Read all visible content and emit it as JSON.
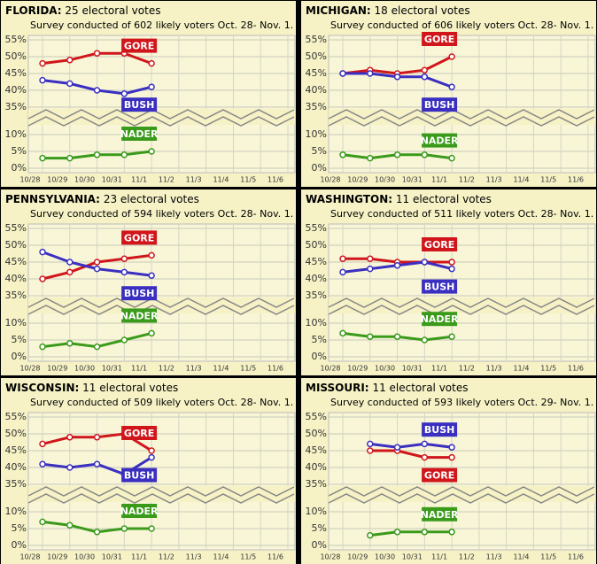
{
  "chart_data": [
    {
      "type": "line",
      "state": "FLORIDA:",
      "title": "25 electoral votes",
      "subtitle": "Survey conducted of 602 likely voters Oct. 28- Nov. 1.",
      "categories": [
        "10/28",
        "10/29",
        "10/30",
        "10/31",
        "11/1",
        "11/2",
        "11/3",
        "11/4",
        "11/5",
        "11/6"
      ],
      "ylim": [
        0,
        55
      ],
      "ybreak": [
        10,
        35
      ],
      "grid": true,
      "yticks": [
        {
          "value": 0,
          "label": "0%"
        },
        {
          "value": 5,
          "label": "5%"
        },
        {
          "value": 10,
          "label": "10%"
        },
        {
          "value": 35,
          "label": "35%"
        },
        {
          "value": 40,
          "label": "40%"
        },
        {
          "value": 45,
          "label": "45%"
        },
        {
          "value": 50,
          "label": "50%"
        },
        {
          "value": 55,
          "label": "55%"
        }
      ],
      "series": [
        {
          "name": "GORE",
          "color": "#d0161b",
          "values": [
            48,
            49,
            51,
            51,
            48,
            null,
            null,
            null,
            null,
            null
          ]
        },
        {
          "name": "BUSH",
          "color": "#3a2fc0",
          "values": [
            43,
            42,
            40,
            39,
            41,
            null,
            null,
            null,
            null,
            null
          ]
        },
        {
          "name": "NADER",
          "color": "#3a9a1a",
          "values": [
            3,
            3,
            4,
            4,
            5,
            null,
            null,
            null,
            null,
            null
          ]
        }
      ]
    },
    {
      "type": "line",
      "state": "MICHIGAN:",
      "title": "18 electoral votes",
      "subtitle": "Survey conducted of 606 likely voters Oct. 28- Nov. 1.",
      "categories": [
        "10/28",
        "10/29",
        "10/30",
        "10/31",
        "11/1",
        "11/2",
        "11/3",
        "11/4",
        "11/5",
        "11/6"
      ],
      "ylim": [
        0,
        55
      ],
      "ybreak": [
        10,
        35
      ],
      "grid": true,
      "yticks": [
        {
          "value": 0,
          "label": "0%"
        },
        {
          "value": 5,
          "label": "5%"
        },
        {
          "value": 10,
          "label": "10%"
        },
        {
          "value": 35,
          "label": "35%"
        },
        {
          "value": 40,
          "label": "40%"
        },
        {
          "value": 45,
          "label": "45%"
        },
        {
          "value": 50,
          "label": "50%"
        },
        {
          "value": 55,
          "label": "55%"
        }
      ],
      "series": [
        {
          "name": "GORE",
          "color": "#d0161b",
          "values": [
            45,
            46,
            45,
            46,
            50,
            null,
            null,
            null,
            null,
            null
          ]
        },
        {
          "name": "BUSH",
          "color": "#3a2fc0",
          "values": [
            45,
            45,
            44,
            44,
            41,
            null,
            null,
            null,
            null,
            null
          ]
        },
        {
          "name": "NADER",
          "color": "#3a9a1a",
          "values": [
            4,
            3,
            4,
            4,
            3,
            null,
            null,
            null,
            null,
            null
          ]
        }
      ]
    },
    {
      "type": "line",
      "state": "PENNSYLVANIA:",
      "title": "23 electoral votes",
      "subtitle": "Survey conducted of 594 likely voters Oct. 28- Nov. 1.",
      "categories": [
        "10/28",
        "10/29",
        "10/30",
        "10/31",
        "11/1",
        "11/2",
        "11/3",
        "11/4",
        "11/5",
        "11/6"
      ],
      "ylim": [
        0,
        55
      ],
      "ybreak": [
        10,
        35
      ],
      "grid": true,
      "yticks": [
        {
          "value": 0,
          "label": "0%"
        },
        {
          "value": 5,
          "label": "5%"
        },
        {
          "value": 10,
          "label": "10%"
        },
        {
          "value": 35,
          "label": "35%"
        },
        {
          "value": 40,
          "label": "40%"
        },
        {
          "value": 45,
          "label": "45%"
        },
        {
          "value": 50,
          "label": "50%"
        },
        {
          "value": 55,
          "label": "55%"
        }
      ],
      "series": [
        {
          "name": "GORE",
          "color": "#d0161b",
          "values": [
            40,
            42,
            45,
            46,
            47,
            null,
            null,
            null,
            null,
            null
          ]
        },
        {
          "name": "BUSH",
          "color": "#3a2fc0",
          "values": [
            48,
            45,
            43,
            42,
            41,
            null,
            null,
            null,
            null,
            null
          ]
        },
        {
          "name": "NADER",
          "color": "#3a9a1a",
          "values": [
            3,
            4,
            3,
            5,
            7,
            null,
            null,
            null,
            null,
            null
          ]
        }
      ]
    },
    {
      "type": "line",
      "state": "WASHINGTON:",
      "title": "11 electoral votes",
      "subtitle": "Survey conducted of 511 likely voters Oct. 28- Nov. 1.",
      "categories": [
        "10/28",
        "10/29",
        "10/30",
        "10/31",
        "11/1",
        "11/2",
        "11/3",
        "11/4",
        "11/5",
        "11/6"
      ],
      "ylim": [
        0,
        55
      ],
      "ybreak": [
        10,
        35
      ],
      "grid": true,
      "yticks": [
        {
          "value": 0,
          "label": "0%"
        },
        {
          "value": 5,
          "label": "5%"
        },
        {
          "value": 10,
          "label": "10%"
        },
        {
          "value": 35,
          "label": "35%"
        },
        {
          "value": 40,
          "label": "40%"
        },
        {
          "value": 45,
          "label": "45%"
        },
        {
          "value": 50,
          "label": "50%"
        },
        {
          "value": 55,
          "label": "55%"
        }
      ],
      "series": [
        {
          "name": "GORE",
          "color": "#d0161b",
          "values": [
            46,
            46,
            45,
            45,
            45,
            null,
            null,
            null,
            null,
            null
          ]
        },
        {
          "name": "BUSH",
          "color": "#3a2fc0",
          "values": [
            42,
            43,
            44,
            45,
            43,
            null,
            null,
            null,
            null,
            null
          ]
        },
        {
          "name": "NADER",
          "color": "#3a9a1a",
          "values": [
            7,
            6,
            6,
            5,
            6,
            null,
            null,
            null,
            null,
            null
          ]
        }
      ]
    },
    {
      "type": "line",
      "state": "WISCONSIN:",
      "title": "11 electoral votes",
      "subtitle": "Survey conducted of 509 likely voters Oct. 28- Nov. 1.",
      "categories": [
        "10/28",
        "10/29",
        "10/30",
        "10/31",
        "11/1",
        "11/2",
        "11/3",
        "11/4",
        "11/5",
        "11/6"
      ],
      "ylim": [
        0,
        55
      ],
      "ybreak": [
        10,
        35
      ],
      "grid": true,
      "yticks": [
        {
          "value": 0,
          "label": "0%"
        },
        {
          "value": 5,
          "label": "5%"
        },
        {
          "value": 10,
          "label": "10%"
        },
        {
          "value": 35,
          "label": "35%"
        },
        {
          "value": 40,
          "label": "40%"
        },
        {
          "value": 45,
          "label": "45%"
        },
        {
          "value": 50,
          "label": "50%"
        },
        {
          "value": 55,
          "label": "55%"
        }
      ],
      "series": [
        {
          "name": "GORE",
          "color": "#d0161b",
          "values": [
            47,
            49,
            49,
            50,
            45,
            null,
            null,
            null,
            null,
            null
          ]
        },
        {
          "name": "BUSH",
          "color": "#3a2fc0",
          "values": [
            41,
            40,
            41,
            38,
            43,
            null,
            null,
            null,
            null,
            null
          ]
        },
        {
          "name": "NADER",
          "color": "#3a9a1a",
          "values": [
            7,
            6,
            4,
            5,
            5,
            null,
            null,
            null,
            null,
            null
          ]
        }
      ]
    },
    {
      "type": "line",
      "state": "MISSOURI:",
      "title": "11 electoral votes",
      "subtitle": "Survey conducted of 593 likely voters Oct. 29- Nov. 1.",
      "categories": [
        "10/28",
        "10/29",
        "10/30",
        "10/31",
        "11/1",
        "11/2",
        "11/3",
        "11/4",
        "11/5",
        "11/6"
      ],
      "ylim": [
        0,
        55
      ],
      "ybreak": [
        10,
        35
      ],
      "grid": true,
      "yticks": [
        {
          "value": 0,
          "label": "0%"
        },
        {
          "value": 5,
          "label": "5%"
        },
        {
          "value": 10,
          "label": "10%"
        },
        {
          "value": 35,
          "label": "35%"
        },
        {
          "value": 40,
          "label": "40%"
        },
        {
          "value": 45,
          "label": "45%"
        },
        {
          "value": 50,
          "label": "50%"
        },
        {
          "value": 55,
          "label": "55%"
        }
      ],
      "series": [
        {
          "name": "GORE",
          "color": "#d0161b",
          "values": [
            null,
            45,
            45,
            43,
            43,
            null,
            null,
            null,
            null,
            null
          ]
        },
        {
          "name": "BUSH",
          "color": "#3a2fc0",
          "values": [
            null,
            47,
            46,
            47,
            46,
            null,
            null,
            null,
            null,
            null
          ]
        },
        {
          "name": "NADER",
          "color": "#3a9a1a",
          "values": [
            null,
            3,
            4,
            4,
            4,
            null,
            null,
            null,
            null,
            null
          ]
        }
      ]
    }
  ]
}
